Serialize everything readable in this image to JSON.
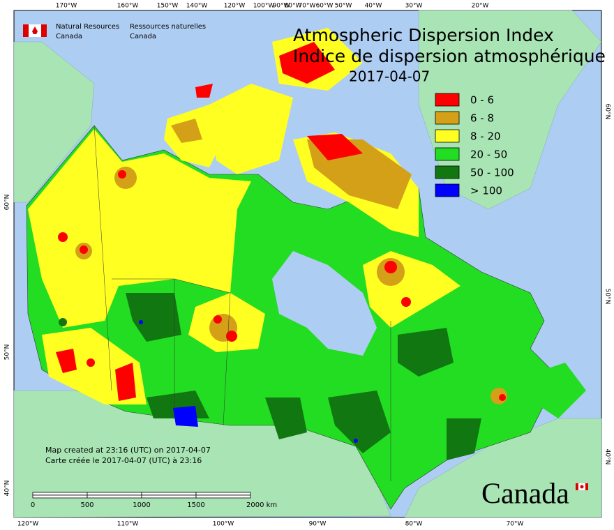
{
  "header": {
    "agency_en_line1": "Natural Resources",
    "agency_en_line2": "Canada",
    "agency_fr_line1": "Ressources naturelles",
    "agency_fr_line2": "Canada"
  },
  "title": "Atmospheric Dispersion Index",
  "title_fr": "Indice de dispersion atmosphérique",
  "date": "2017-04-07",
  "legend": [
    {
      "label": "0 - 6",
      "color": "#ff0000"
    },
    {
      "label": "6 - 8",
      "color": "#d4a017"
    },
    {
      "label": "8 - 20",
      "color": "#ffff22"
    },
    {
      "label": "20 - 50",
      "color": "#22dd22"
    },
    {
      "label": "50 - 100",
      "color": "#117711"
    },
    {
      "label": "> 100",
      "color": "#0000ff"
    }
  ],
  "graticule": {
    "top": [
      "170°W",
      "160°W",
      "150°W",
      "140°W",
      "120°W",
      "100°W",
      "90°W",
      "80°W",
      "70°W",
      "60°W",
      "50°W",
      "40°W",
      "30°W",
      "20°W"
    ],
    "bottom": [
      "120°W",
      "110°W",
      "100°W",
      "90°W",
      "80°W",
      "70°W"
    ],
    "left": [
      "60°N",
      "50°N",
      "40°N"
    ],
    "right": [
      "60°N",
      "50°N",
      "40°N"
    ]
  },
  "scale_bar": {
    "labels": [
      "0",
      "500",
      "1000",
      "1500",
      "2000 km"
    ]
  },
  "footer": {
    "created_en": "Map created at 23:16 (UTC) on 2017-04-07",
    "created_fr": "Carte créée le 2017-04-07 (UTC) à 23:16"
  },
  "wordmark": "Canada"
}
